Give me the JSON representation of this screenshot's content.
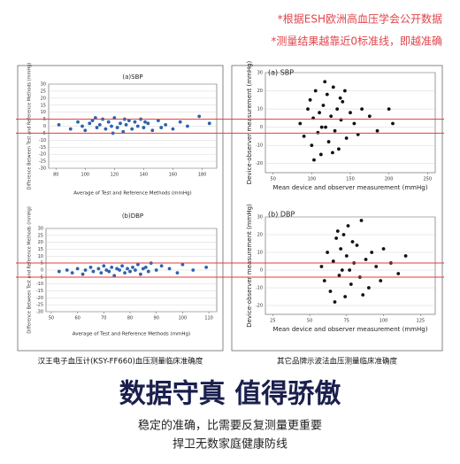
{
  "notes": [
    "*根据ESH欧洲高血压学会公开数据",
    "*测量结果越靠近0标准线，即越准确"
  ],
  "captions": [
    "汉王电子血压计(KSY-FF660)血压测量临床准确度",
    "其它品牌示波法血压测量临床准确度"
  ],
  "headline": "数据守真 值得骄傲",
  "sublines": [
    "稳定的准确，比需要反复测量更重要",
    "捍卫无数家庭健康防线"
  ],
  "chart_data": [
    {
      "type": "scatter",
      "title": "(a)SBP",
      "x_label": "Average of Test and Reference Methods (mmHg)",
      "y_label": "Difference Between Test and Reference Methods (mmHg)",
      "color": "#2a63ad",
      "grid": true,
      "xlim": [
        75,
        190
      ],
      "xticks": [
        80,
        100,
        120,
        140,
        160,
        180
      ],
      "ylim": [
        -30,
        30
      ],
      "yticks": [
        -30,
        -25,
        -20,
        -15,
        -10,
        -5,
        0,
        5,
        10,
        15,
        20,
        25,
        30
      ],
      "x": [
        82,
        90,
        95,
        98,
        100,
        103,
        105,
        108,
        110,
        112,
        114,
        116,
        118,
        120,
        122,
        124,
        126,
        128,
        130,
        132,
        134,
        136,
        138,
        140,
        143,
        146,
        150,
        155,
        160,
        165,
        170,
        178,
        185,
        107,
        119,
        127,
        141,
        152
      ],
      "values": [
        1,
        -2,
        3,
        0,
        -3,
        2,
        4,
        -1,
        1,
        5,
        -2,
        3,
        0,
        6,
        -1,
        2,
        -4,
        1,
        4,
        -2,
        3,
        0,
        5,
        -1,
        2,
        -3,
        4,
        1,
        -2,
        3,
        0,
        7,
        2,
        6,
        -5,
        5,
        3,
        -1
      ]
    },
    {
      "type": "scatter",
      "title": "(b)DBP",
      "x_label": "Average of Test and Reference Methods (mmHg)",
      "y_label": "Difference Between Test and Reference Methods (mmHg)",
      "color": "#2a63ad",
      "grid": true,
      "xlim": [
        48,
        113
      ],
      "xticks": [
        50,
        60,
        70,
        80,
        90,
        100,
        110
      ],
      "ylim": [
        -30,
        30
      ],
      "yticks": [
        -30,
        -25,
        -20,
        -15,
        -10,
        -5,
        0,
        5,
        10,
        15,
        20,
        25,
        30
      ],
      "x": [
        53,
        56,
        58,
        60,
        62,
        63,
        65,
        66,
        68,
        69,
        70,
        71,
        72,
        73,
        74,
        75,
        76,
        77,
        78,
        79,
        80,
        81,
        82,
        83,
        84,
        85,
        86,
        87,
        88,
        90,
        92,
        95,
        98,
        100,
        104,
        109
      ],
      "values": [
        -1,
        0,
        -2,
        1,
        -3,
        0,
        2,
        -1,
        1,
        -2,
        3,
        0,
        -1,
        2,
        -4,
        1,
        0,
        3,
        -2,
        1,
        -1,
        2,
        0,
        4,
        -3,
        1,
        2,
        -1,
        5,
        0,
        3,
        1,
        -2,
        4,
        0,
        2
      ]
    },
    {
      "type": "scatter",
      "title": "(a) SBP",
      "x_label": "Mean device and observer measurement (mmHg)",
      "y_label": "Device-observer measurement (mmHg)",
      "color": "#111111",
      "grid": true,
      "xlim": [
        40,
        260
      ],
      "xticks": [
        50,
        100,
        150,
        200,
        250
      ],
      "ylim": [
        -25,
        30
      ],
      "yticks": [
        -20,
        -10,
        0,
        10,
        20,
        30
      ],
      "x": [
        85,
        90,
        95,
        98,
        100,
        102,
        105,
        108,
        110,
        112,
        115,
        118,
        120,
        122,
        125,
        128,
        130,
        133,
        135,
        138,
        140,
        145,
        150,
        155,
        160,
        165,
        175,
        185,
        200,
        205,
        103,
        117,
        127,
        137,
        113,
        143
      ],
      "values": [
        2,
        -5,
        10,
        15,
        -10,
        5,
        20,
        -3,
        8,
        -15,
        12,
        0,
        18,
        -8,
        6,
        22,
        -2,
        10,
        -12,
        4,
        14,
        -6,
        8,
        2,
        -4,
        10,
        6,
        -2,
        10,
        2,
        -18,
        25,
        -14,
        16,
        0,
        20
      ]
    },
    {
      "type": "scatter",
      "title": "(b) DBP",
      "x_label": "Mean device and observer measurement (mmHg)",
      "y_label": "Device-observer measurement (mmHg)",
      "color": "#111111",
      "grid": true,
      "xlim": [
        20,
        135
      ],
      "xticks": [
        25,
        50,
        75,
        100,
        125
      ],
      "ylim": [
        -25,
        30
      ],
      "yticks": [
        -20,
        -10,
        0,
        10,
        20,
        30
      ],
      "x": [
        58,
        60,
        62,
        64,
        66,
        68,
        70,
        71,
        72,
        74,
        75,
        76,
        78,
        80,
        82,
        84,
        85,
        88,
        90,
        92,
        95,
        98,
        100,
        105,
        110,
        115,
        67,
        73,
        79,
        86,
        69,
        77
      ],
      "values": [
        2,
        -6,
        10,
        -12,
        5,
        18,
        -3,
        12,
        0,
        -15,
        8,
        25,
        -8,
        4,
        14,
        -4,
        28,
        6,
        -10,
        10,
        2,
        -6,
        12,
        4,
        -2,
        8,
        -18,
        20,
        16,
        -14,
        22,
        0
      ]
    }
  ]
}
